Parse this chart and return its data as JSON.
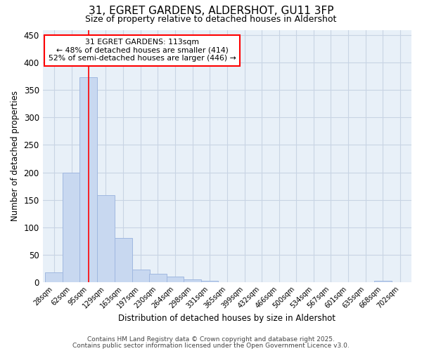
{
  "title_line1": "31, EGRET GARDENS, ALDERSHOT, GU11 3FP",
  "title_line2": "Size of property relative to detached houses in Aldershot",
  "xlabel": "Distribution of detached houses by size in Aldershot",
  "ylabel": "Number of detached properties",
  "bar_color": "#c8d8f0",
  "bar_edge_color": "#a0b8e0",
  "property_line_x": 113,
  "property_line_color": "red",
  "annotation_title": "31 EGRET GARDENS: 113sqm",
  "annotation_line2": "← 48% of detached houses are smaller (414)",
  "annotation_line3": "52% of semi-detached houses are larger (446) →",
  "footnote1": "Contains HM Land Registry data © Crown copyright and database right 2025.",
  "footnote2": "Contains public sector information licensed under the Open Government Licence v3.0.",
  "background_color": "#ffffff",
  "plot_bg_color": "#e8f0f8",
  "grid_color": "#c8d4e4",
  "bins_start": [
    28,
    62,
    95,
    129,
    163,
    197,
    230,
    264,
    298,
    331,
    365,
    399,
    432,
    466,
    500,
    534,
    567,
    601,
    635,
    668,
    702
  ],
  "bar_heights": [
    18,
    200,
    373,
    158,
    80,
    22,
    15,
    10,
    5,
    2,
    0,
    0,
    0,
    0,
    0,
    0,
    0,
    0,
    0,
    2,
    0
  ],
  "ylim": [
    0,
    460
  ],
  "yticks": [
    0,
    50,
    100,
    150,
    200,
    250,
    300,
    350,
    400,
    450
  ]
}
